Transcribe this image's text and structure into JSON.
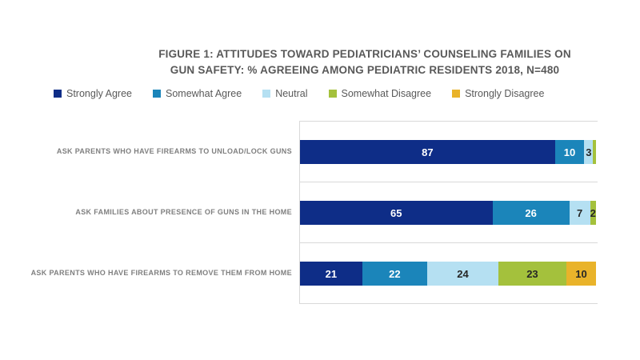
{
  "header": {
    "title_line1": "FIGURE 1: ATTITUDES TOWARD PEDIATRICIANS’ COUNSELING FAMILIES ON",
    "title_line2": "GUN SAFETY: % AGREEING AMONG PEDIATRIC RESIDENTS 2018, N=480"
  },
  "chart_data": {
    "type": "bar",
    "variant": "horizontal-stacked",
    "title": "FIGURE 1: ATTITUDES TOWARD PEDIATRICIANS’ COUNSELING FAMILIES ON GUN SAFETY: % AGREEING AMONG PEDIATRIC RESIDENTS 2018, N=480",
    "categories": [
      "ASK PARENTS WHO HAVE FIREARMS TO UNLOAD/LOCK GUNS",
      "ASK FAMILIES ABOUT PRESENCE OF GUNS IN THE HOME",
      "ASK PARENTS WHO HAVE FIREARMS TO REMOVE THEM FROM HOME"
    ],
    "series": [
      {
        "name": "Strongly Agree",
        "color": "#0e2d87",
        "label_color": "#ffffff",
        "values": [
          87,
          65,
          21
        ]
      },
      {
        "name": "Somewhat Agree",
        "color": "#1b85ba",
        "label_color": "#ffffff",
        "values": [
          10,
          26,
          22
        ]
      },
      {
        "name": "Neutral",
        "color": "#b5e0f2",
        "label_color": "#262626",
        "values": [
          3,
          7,
          24
        ]
      },
      {
        "name": "Somewhat Disagree",
        "color": "#a4c13c",
        "label_color": "#262626",
        "values": [
          1,
          2,
          23
        ]
      },
      {
        "name": "Strongly Disagree",
        "color": "#e9b32a",
        "label_color": "#262626",
        "values": [
          0,
          0,
          10
        ]
      }
    ],
    "xlim": [
      0,
      100
    ],
    "value_labels": true,
    "min_label_value": 2,
    "legend_position": "top",
    "gridlines": "row-separators",
    "grid_color": "#d9d9d9"
  }
}
